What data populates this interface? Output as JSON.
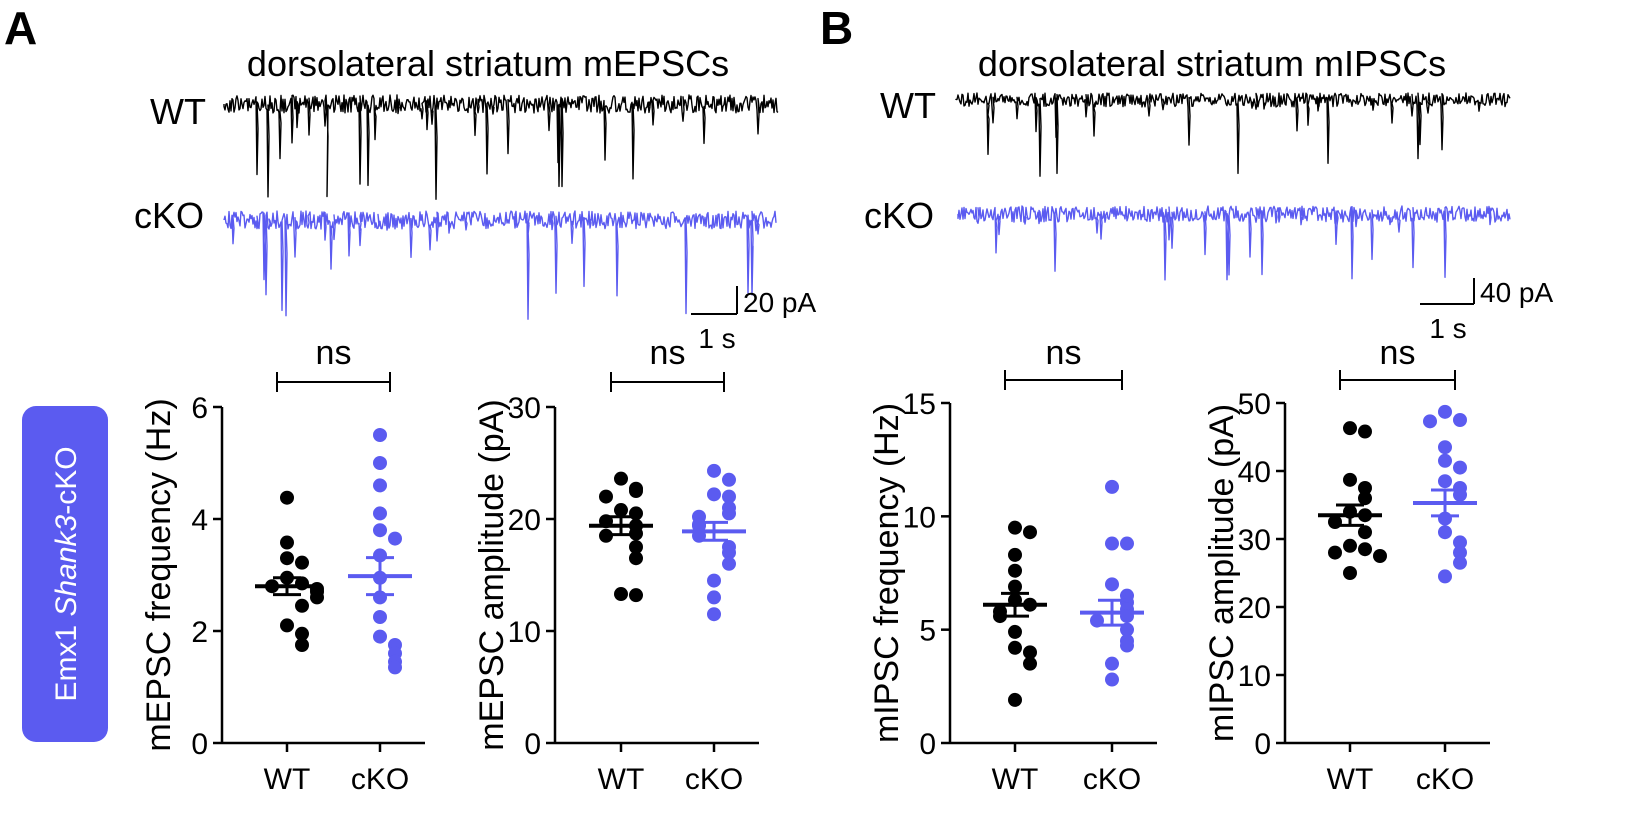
{
  "colors": {
    "wt": "#000000",
    "cko": "#5b5bf0",
    "badge": "#5b5bf0",
    "badge_text": "#ffffff"
  },
  "side_badge": {
    "prefix": "Emx1 ",
    "gene": "Shank3",
    "suffix": "-cKO"
  },
  "panels": [
    {
      "letter": "A",
      "title": "dorsolateral striatum mEPSCs",
      "trace_labels": {
        "wt": "WT",
        "cko": "cKO"
      },
      "scale_bar": {
        "y_label": "20 pA",
        "x_label": "1 s"
      },
      "seed": 7
    },
    {
      "letter": "B",
      "title": "dorsolateral striatum mIPSCs",
      "trace_labels": {
        "wt": "WT",
        "cko": "cKO"
      },
      "scale_bar": {
        "y_label": "40 pA",
        "x_label": "1 s"
      },
      "seed": 19
    }
  ],
  "chart_data": [
    {
      "type": "scatter",
      "id": "mepsc-frequency",
      "ylabel": "mEPSC frequency (Hz)",
      "ylim": [
        0,
        6
      ],
      "yticks": [
        "0",
        "2",
        "4",
        "6"
      ],
      "categories": [
        "WT",
        "cKO"
      ],
      "significance": "ns",
      "series": [
        {
          "name": "WT",
          "mean": 2.8,
          "sem": 0.15,
          "values": [
            4.38,
            3.58,
            3.3,
            3.22,
            2.95,
            2.85,
            2.8,
            2.75,
            2.7,
            2.6,
            2.45,
            2.1,
            1.95,
            1.75
          ]
        },
        {
          "name": "cKO",
          "mean": 2.98,
          "sem": 0.33,
          "values": [
            5.5,
            5.0,
            4.6,
            4.1,
            3.8,
            3.65,
            3.35,
            2.95,
            2.6,
            2.25,
            1.9,
            1.75,
            1.6,
            1.45,
            1.35
          ]
        }
      ]
    },
    {
      "type": "scatter",
      "id": "mepsc-amplitude",
      "ylabel": "mEPSC amplitude (pA)",
      "ylim": [
        0,
        30
      ],
      "yticks": [
        "0",
        "10",
        "20",
        "30"
      ],
      "categories": [
        "WT",
        "cKO"
      ],
      "significance": "ns",
      "series": [
        {
          "name": "WT",
          "mean": 19.4,
          "sem": 0.8,
          "values": [
            23.6,
            22.7,
            22.5,
            22.0,
            20.8,
            20.5,
            19.8,
            19.4,
            18.7,
            18.5,
            17.5,
            16.5,
            13.3,
            13.2
          ]
        },
        {
          "name": "cKO",
          "mean": 18.9,
          "sem": 0.8,
          "values": [
            24.3,
            23.5,
            22.2,
            22.0,
            21.0,
            20.5,
            20.2,
            19.5,
            19.4,
            18.5,
            17.5,
            17.0,
            16.0,
            14.5,
            13.0,
            11.5
          ]
        }
      ]
    },
    {
      "type": "scatter",
      "id": "mipsc-frequency",
      "ylabel": "mIPSC frequency (Hz)",
      "ylim": [
        0,
        15
      ],
      "yticks": [
        "0",
        "5",
        "10",
        "15"
      ],
      "categories": [
        "WT",
        "cKO"
      ],
      "significance": "ns",
      "series": [
        {
          "name": "WT",
          "mean": 6.1,
          "sem": 0.5,
          "values": [
            9.5,
            9.3,
            8.3,
            7.6,
            6.9,
            6.3,
            6.1,
            5.8,
            5.6,
            4.9,
            4.2,
            4.0,
            3.5,
            1.9
          ]
        },
        {
          "name": "cKO",
          "mean": 5.75,
          "sem": 0.55,
          "values": [
            11.3,
            8.8,
            8.8,
            7.0,
            6.5,
            6.2,
            5.9,
            5.6,
            5.4,
            5.0,
            4.5,
            4.3,
            3.5,
            2.8
          ]
        }
      ]
    },
    {
      "type": "scatter",
      "id": "mipsc-amplitude",
      "ylabel": "mIPSC amplitude (pA)",
      "ylim": [
        0,
        50
      ],
      "yticks": [
        "0",
        "10",
        "20",
        "30",
        "40",
        "50"
      ],
      "categories": [
        "WT",
        "cKO"
      ],
      "significance": "ns",
      "series": [
        {
          "name": "WT",
          "mean": 33.5,
          "sem": 1.5,
          "values": [
            46.3,
            45.8,
            38.7,
            37.5,
            36.0,
            34.0,
            33.5,
            32.5,
            31.0,
            29.0,
            28.5,
            28.0,
            27.5,
            25.0
          ]
        },
        {
          "name": "cKO",
          "mean": 35.3,
          "sem": 1.9,
          "values": [
            48.7,
            47.5,
            47.3,
            43.5,
            41.5,
            40.5,
            38.5,
            37.5,
            36.5,
            33.0,
            31.0,
            29.5,
            28.0,
            26.5,
            24.5
          ]
        }
      ]
    }
  ]
}
